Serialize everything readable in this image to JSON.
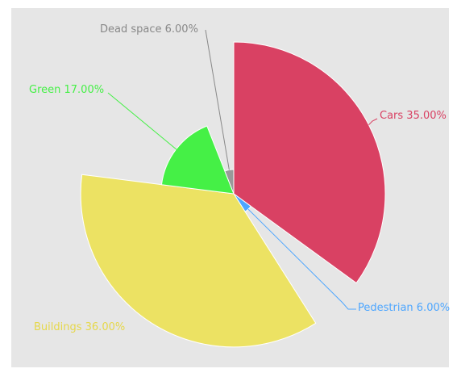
{
  "chart_data": {
    "type": "pie",
    "variant": "rose",
    "slices": [
      {
        "label": "Cars 35.00%",
        "name": "Cars",
        "value": 35.0,
        "radius_rel": 1.0,
        "color": "#d94163",
        "label_color": "#d94163"
      },
      {
        "label": "Pedestrian 6.00%",
        "name": "Pedestrian",
        "value": 6.0,
        "radius_rel": 0.14,
        "color": "#4da6ff",
        "label_color": "#4da6ff"
      },
      {
        "label": "Buildings 36.00%",
        "name": "Buildings",
        "value": 36.0,
        "radius_rel": 1.01,
        "color": "#ece263",
        "label_color": "#e6d84a"
      },
      {
        "label": "Green 17.00%",
        "name": "Green",
        "value": 17.0,
        "radius_rel": 0.48,
        "color": "#45f046",
        "label_color": "#45f046"
      },
      {
        "label": "Dead space 6.00%",
        "name": "Dead space",
        "value": 6.0,
        "radius_rel": 0.16,
        "color": "#999999",
        "label_color": "#888888"
      }
    ],
    "legend": "none"
  }
}
